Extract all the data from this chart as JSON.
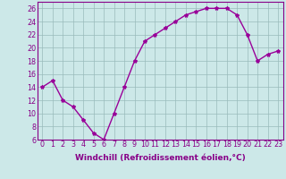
{
  "x": [
    0,
    1,
    2,
    3,
    4,
    5,
    6,
    7,
    8,
    9,
    10,
    11,
    12,
    13,
    14,
    15,
    16,
    17,
    18,
    19,
    20,
    21,
    22,
    23
  ],
  "y": [
    14,
    15,
    12,
    11,
    9,
    7,
    6,
    10,
    14,
    18,
    21,
    22,
    23,
    24,
    25,
    25.5,
    26,
    26,
    26,
    25,
    22,
    18,
    19,
    19.5
  ],
  "line_color": "#990099",
  "marker": "*",
  "marker_color": "#990099",
  "bg_color": "#cce8e8",
  "grid_color": "#99bbbb",
  "xlabel": "Windchill (Refroidissement éolien,°C)",
  "ylim": [
    6,
    27
  ],
  "xlim": [
    -0.5,
    23.5
  ],
  "yticks": [
    6,
    8,
    10,
    12,
    14,
    16,
    18,
    20,
    22,
    24,
    26
  ],
  "xticks": [
    0,
    1,
    2,
    3,
    4,
    5,
    6,
    7,
    8,
    9,
    10,
    11,
    12,
    13,
    14,
    15,
    16,
    17,
    18,
    19,
    20,
    21,
    22,
    23
  ],
  "tick_label_color": "#880088",
  "xlabel_color": "#880088",
  "xlabel_fontsize": 6.5,
  "tick_fontsize": 5.8,
  "line_width": 1.0,
  "marker_size": 3.0,
  "spine_color": "#880088"
}
